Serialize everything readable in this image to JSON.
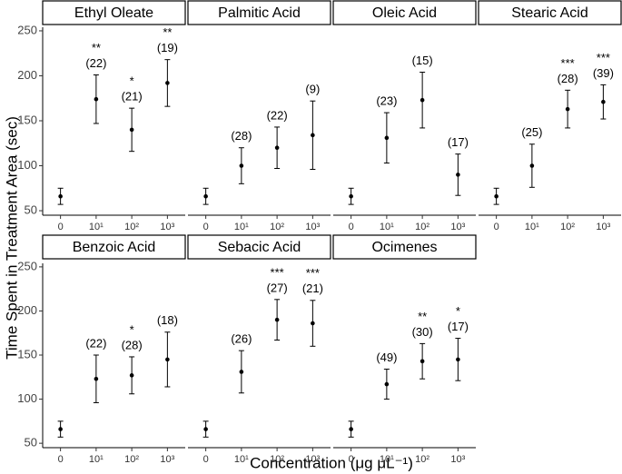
{
  "axis_labels": {
    "y": "Time Spent in Treatment Area (sec)",
    "x": "Concentration (μg μL⁻¹)"
  },
  "ylim": [
    45,
    254
  ],
  "yticks": [
    50,
    100,
    150,
    200,
    250
  ],
  "chart_data": [
    {
      "type": "errorbar",
      "title": "Ethyl Oleate",
      "categories": [
        "0",
        "10¹",
        "10²",
        "10³"
      ],
      "values": [
        66,
        174,
        140,
        192
      ],
      "errors": [
        9,
        27,
        24,
        26
      ],
      "n_labels": [
        null,
        "(22)",
        "(21)",
        "(19)"
      ],
      "sig_labels": [
        null,
        "**",
        "*",
        "**"
      ],
      "color": "#000000"
    },
    {
      "type": "errorbar",
      "title": "Palmitic Acid",
      "categories": [
        "0",
        "10¹",
        "10²",
        "10³"
      ],
      "values": [
        66,
        100,
        120,
        134
      ],
      "errors": [
        9,
        20,
        23,
        38
      ],
      "n_labels": [
        null,
        "(28)",
        "(22)",
        "(9)"
      ],
      "sig_labels": [
        null,
        null,
        null,
        null
      ],
      "color": "#000000"
    },
    {
      "type": "errorbar",
      "title": "Oleic Acid",
      "categories": [
        "0",
        "10¹",
        "10²",
        "10³"
      ],
      "values": [
        66,
        131,
        173,
        90
      ],
      "errors": [
        9,
        28,
        31,
        23
      ],
      "n_labels": [
        null,
        "(23)",
        "(15)",
        "(17)"
      ],
      "sig_labels": [
        null,
        null,
        null,
        null
      ],
      "color": "#000000"
    },
    {
      "type": "errorbar",
      "title": "Stearic Acid",
      "categories": [
        "0",
        "10¹",
        "10²",
        "10³"
      ],
      "values": [
        66,
        100,
        163,
        171
      ],
      "errors": [
        9,
        24,
        21,
        19
      ],
      "n_labels": [
        null,
        "(25)",
        "(28)",
        "(39)"
      ],
      "sig_labels": [
        null,
        null,
        "***",
        "***"
      ],
      "color": "#000000"
    },
    {
      "type": "errorbar",
      "title": "Benzoic Acid",
      "categories": [
        "0",
        "10¹",
        "10²",
        "10³"
      ],
      "values": [
        66,
        123,
        127,
        145
      ],
      "errors": [
        9,
        27,
        21,
        31
      ],
      "n_labels": [
        null,
        "(22)",
        "(28)",
        "(18)"
      ],
      "sig_labels": [
        null,
        null,
        "*",
        null
      ],
      "color": "#000000"
    },
    {
      "type": "errorbar",
      "title": "Sebacic Acid",
      "categories": [
        "0",
        "10¹",
        "10²",
        "10³"
      ],
      "values": [
        66,
        131,
        190,
        186
      ],
      "errors": [
        9,
        24,
        23,
        26
      ],
      "n_labels": [
        null,
        "(26)",
        "(27)",
        "(21)"
      ],
      "sig_labels": [
        null,
        null,
        "***",
        "***"
      ],
      "color": "#000000"
    },
    {
      "type": "errorbar",
      "title": "Ocimenes",
      "categories": [
        "0",
        "10¹",
        "10²",
        "10³"
      ],
      "values": [
        66,
        117,
        143,
        145
      ],
      "errors": [
        9,
        17,
        20,
        24
      ],
      "n_labels": [
        null,
        "(49)",
        "(30)",
        "(17)"
      ],
      "sig_labels": [
        null,
        null,
        "**",
        "*"
      ],
      "color": "#000000"
    }
  ]
}
